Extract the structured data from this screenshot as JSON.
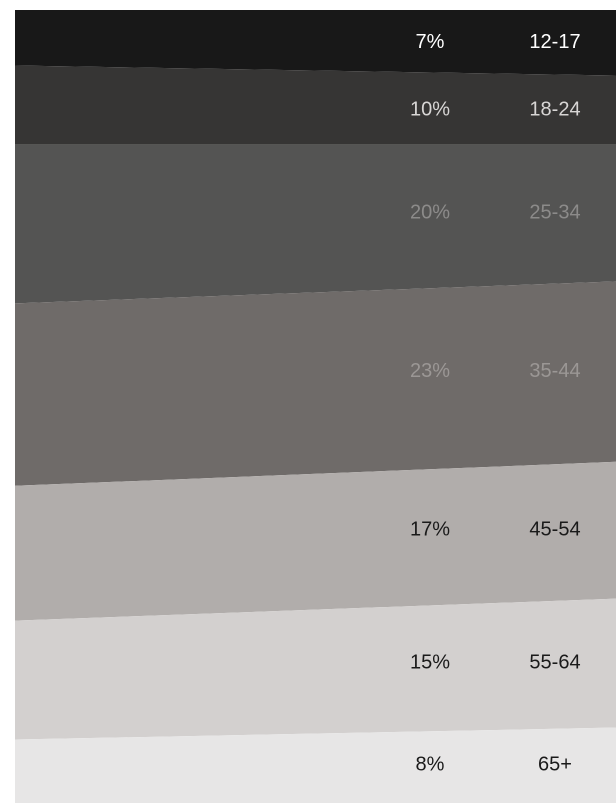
{
  "chart_data": {
    "type": "area",
    "title": "",
    "xlabel": "",
    "ylabel": "",
    "series": [
      {
        "name": "12-17",
        "share_label": "7%",
        "value": 7,
        "color": "#181818",
        "text_color": "#ffffff"
      },
      {
        "name": "18-24",
        "share_label": "10%",
        "value": 10,
        "color": "#363534",
        "text_color": "#d8d6d5"
      },
      {
        "name": "25-34",
        "share_label": "20%",
        "value": 20,
        "color": "#545453",
        "text_color": "#8c8b8a"
      },
      {
        "name": "35-44",
        "share_label": "23%",
        "value": 23,
        "color": "#6f6b69",
        "text_color": "#9b9795"
      },
      {
        "name": "45-54",
        "share_label": "17%",
        "value": 17,
        "color": "#b1adab",
        "text_color": "#1a1a1a"
      },
      {
        "name": "55-64",
        "share_label": "15%",
        "value": 15,
        "color": "#d3d0cf",
        "text_color": "#1a1a1a"
      },
      {
        "name": "65+",
        "share_label": "8%",
        "value": 8,
        "color": "#e7e6e6",
        "text_color": "#1a1a1a"
      }
    ]
  }
}
